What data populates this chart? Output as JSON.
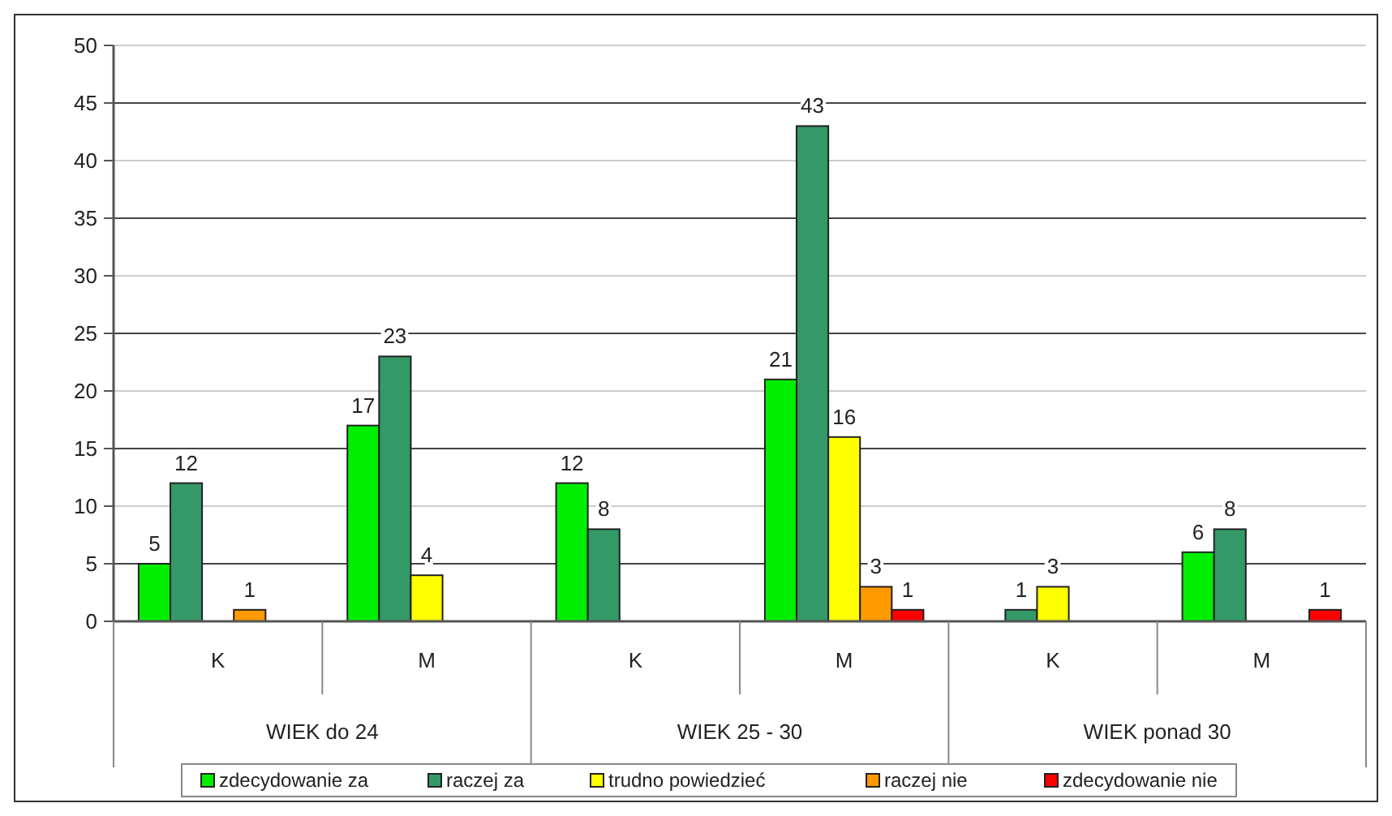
{
  "chart_data": {
    "type": "bar",
    "categories": [
      "K",
      "M",
      "K",
      "M",
      "K",
      "M"
    ],
    "series": [
      {
        "name": "zdecydowanie za",
        "color": "#00ee00",
        "values": [
          5,
          17,
          12,
          21,
          null,
          6
        ]
      },
      {
        "name": "raczej za",
        "color": "#339966",
        "values": [
          12,
          23,
          8,
          43,
          1,
          8
        ]
      },
      {
        "name": "trudno powiedzieć",
        "color": "#ffff00",
        "values": [
          null,
          4,
          null,
          16,
          3,
          null
        ]
      },
      {
        "name": "raczej nie",
        "color": "#ff9900",
        "values": [
          1,
          null,
          null,
          3,
          null,
          null
        ]
      },
      {
        "name": "zdecydowanie nie",
        "color": "#ff0000",
        "values": [
          null,
          null,
          null,
          1,
          null,
          1
        ]
      }
    ],
    "annotations": [
      "WIEK do 24",
      "WIEK 25 - 30",
      "WIEK ponad 30"
    ],
    "ylim": [
      0,
      50
    ],
    "yticks": [
      0,
      5,
      10,
      15,
      20,
      25,
      30,
      35,
      40,
      45,
      50
    ],
    "grid": "y",
    "legend": "bottom",
    "data_labels": true
  }
}
